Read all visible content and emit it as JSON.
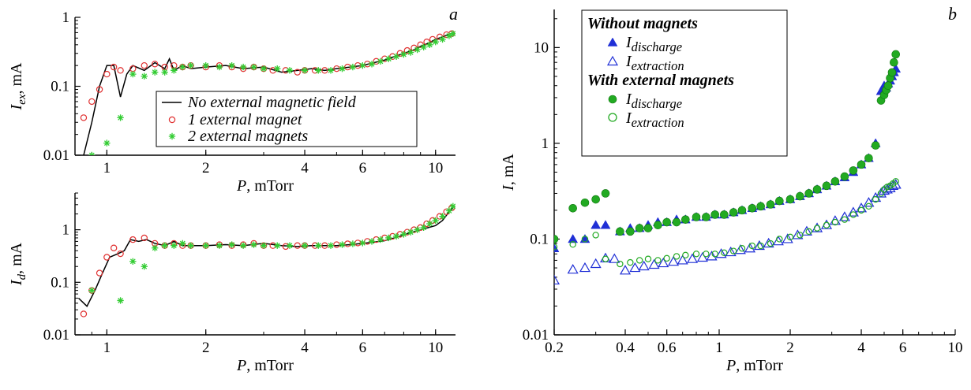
{
  "chart_data": [
    {
      "id": "panel-a-top",
      "type": "scatter",
      "panel_label": "a",
      "xlabel_var": "P",
      "xlabel_unit": ", mTorr",
      "ylabel_var": "I",
      "ylabel_sub": "ex",
      "ylabel_unit": ", mA",
      "x_scale": "log",
      "y_scale": "log",
      "xlim": [
        0.8,
        11.5
      ],
      "ylim": [
        0.01,
        1
      ],
      "x_ticks": [
        1,
        2,
        4,
        6,
        10
      ],
      "x_tick_labels": [
        "1",
        "2",
        "4",
        "6",
        "10"
      ],
      "y_ticks": [
        0.01,
        0.1,
        1
      ],
      "y_tick_labels": [
        "0.01",
        "0.1",
        "1"
      ],
      "legend_position": "middle-right",
      "series": [
        {
          "name": "No external magnetic field",
          "style": "line",
          "color": "#000000",
          "x": [
            0.85,
            0.9,
            0.95,
            1.0,
            1.05,
            1.1,
            1.15,
            1.2,
            1.3,
            1.4,
            1.5,
            1.55,
            1.6,
            1.7,
            1.8,
            2.0,
            2.3,
            2.6,
            3.0,
            3.4,
            3.8,
            4.2,
            4.6,
            5.0,
            5.5,
            6.0,
            6.5,
            7.0,
            7.5,
            8.0,
            8.5,
            9.0,
            9.5,
            10.0,
            10.5,
            11.0
          ],
          "y": [
            0.01,
            0.03,
            0.1,
            0.2,
            0.2,
            0.07,
            0.15,
            0.2,
            0.17,
            0.22,
            0.18,
            0.25,
            0.17,
            0.2,
            0.18,
            0.19,
            0.2,
            0.18,
            0.19,
            0.16,
            0.17,
            0.18,
            0.17,
            0.18,
            0.19,
            0.2,
            0.22,
            0.24,
            0.27,
            0.3,
            0.33,
            0.38,
            0.42,
            0.48,
            0.52,
            0.57
          ]
        },
        {
          "name": "1 external magnet",
          "style": "open-circle",
          "color": "#e03030",
          "x": [
            0.85,
            0.9,
            0.95,
            1.0,
            1.05,
            1.1,
            1.2,
            1.3,
            1.4,
            1.5,
            1.6,
            1.7,
            1.8,
            2.0,
            2.2,
            2.4,
            2.6,
            2.8,
            3.0,
            3.2,
            3.5,
            3.8,
            4.0,
            4.3,
            4.6,
            5.0,
            5.4,
            5.8,
            6.2,
            6.6,
            7.0,
            7.4,
            7.8,
            8.2,
            8.6,
            9.0,
            9.4,
            9.8,
            10.3,
            10.8,
            11.2
          ],
          "y": [
            0.035,
            0.06,
            0.09,
            0.15,
            0.19,
            0.17,
            0.18,
            0.2,
            0.21,
            0.19,
            0.2,
            0.19,
            0.2,
            0.19,
            0.2,
            0.19,
            0.18,
            0.19,
            0.18,
            0.17,
            0.17,
            0.16,
            0.17,
            0.17,
            0.17,
            0.18,
            0.19,
            0.2,
            0.21,
            0.23,
            0.25,
            0.27,
            0.3,
            0.33,
            0.36,
            0.4,
            0.44,
            0.48,
            0.52,
            0.56,
            0.58
          ]
        },
        {
          "name": "2 external magnets",
          "style": "asterisk",
          "color": "#33cc33",
          "x": [
            0.9,
            1.0,
            1.1,
            1.2,
            1.3,
            1.4,
            1.5,
            1.6,
            1.7,
            1.8,
            2.0,
            2.2,
            2.4,
            2.6,
            2.8,
            3.0,
            3.3,
            3.6,
            4.0,
            4.4,
            4.8,
            5.2,
            5.6,
            6.0,
            6.4,
            6.8,
            7.2,
            7.6,
            8.0,
            8.4,
            8.8,
            9.2,
            9.6,
            10.0,
            10.5,
            11.0,
            11.3
          ],
          "y": [
            0.01,
            0.015,
            0.035,
            0.15,
            0.14,
            0.16,
            0.16,
            0.17,
            0.19,
            0.2,
            0.2,
            0.19,
            0.2,
            0.19,
            0.19,
            0.18,
            0.18,
            0.17,
            0.17,
            0.17,
            0.17,
            0.18,
            0.19,
            0.2,
            0.21,
            0.23,
            0.25,
            0.27,
            0.29,
            0.31,
            0.34,
            0.37,
            0.4,
            0.44,
            0.48,
            0.54,
            0.58
          ]
        }
      ]
    },
    {
      "id": "panel-a-bottom",
      "type": "scatter",
      "xlabel_var": "P",
      "xlabel_unit": ", mTorr",
      "ylabel_var": "I",
      "ylabel_sub": "d",
      "ylabel_unit": ", mA",
      "x_scale": "log",
      "y_scale": "log",
      "xlim": [
        0.8,
        11.5
      ],
      "ylim": [
        0.01,
        5
      ],
      "x_ticks": [
        1,
        2,
        4,
        6,
        10
      ],
      "x_tick_labels": [
        "1",
        "2",
        "4",
        "6",
        "10"
      ],
      "y_ticks": [
        0.01,
        0.1,
        1
      ],
      "y_tick_labels": [
        "0.01",
        "0.1",
        "1"
      ],
      "series": [
        {
          "name": "No external magnetic field",
          "style": "line",
          "color": "#000000",
          "x": [
            0.82,
            0.87,
            0.92,
            0.97,
            1.02,
            1.08,
            1.13,
            1.18,
            1.25,
            1.32,
            1.4,
            1.5,
            1.6,
            1.7,
            1.85,
            2.0,
            2.3,
            2.6,
            3.0,
            3.4,
            3.8,
            4.2,
            4.6,
            5.0,
            5.5,
            6.0,
            6.5,
            7.0,
            7.5,
            8.0,
            8.5,
            9.0,
            9.5,
            10.0,
            10.5,
            11.0,
            11.4
          ],
          "y": [
            0.05,
            0.035,
            0.07,
            0.15,
            0.3,
            0.35,
            0.4,
            0.65,
            0.6,
            0.65,
            0.55,
            0.5,
            0.6,
            0.5,
            0.5,
            0.5,
            0.52,
            0.5,
            0.55,
            0.5,
            0.48,
            0.5,
            0.5,
            0.5,
            0.52,
            0.55,
            0.58,
            0.62,
            0.7,
            0.8,
            0.9,
            1.0,
            1.1,
            1.2,
            1.5,
            2.2,
            2.8
          ]
        },
        {
          "name": "1 external magnet",
          "style": "open-circle",
          "color": "#e03030",
          "x": [
            0.85,
            0.9,
            0.95,
            1.0,
            1.05,
            1.1,
            1.2,
            1.3,
            1.4,
            1.5,
            1.6,
            1.7,
            1.8,
            2.0,
            2.2,
            2.4,
            2.6,
            2.8,
            3.0,
            3.2,
            3.5,
            3.8,
            4.0,
            4.3,
            4.6,
            5.0,
            5.4,
            5.8,
            6.2,
            6.6,
            7.0,
            7.4,
            7.8,
            8.2,
            8.6,
            9.0,
            9.4,
            9.8,
            10.3,
            10.8,
            11.2
          ],
          "y": [
            0.025,
            0.07,
            0.15,
            0.3,
            0.45,
            0.35,
            0.65,
            0.7,
            0.55,
            0.5,
            0.55,
            0.5,
            0.5,
            0.5,
            0.52,
            0.5,
            0.52,
            0.55,
            0.5,
            0.5,
            0.48,
            0.5,
            0.5,
            0.5,
            0.5,
            0.52,
            0.54,
            0.56,
            0.6,
            0.65,
            0.7,
            0.75,
            0.82,
            0.9,
            1.0,
            1.1,
            1.3,
            1.5,
            1.8,
            2.2,
            2.6
          ]
        },
        {
          "name": "2 external magnets",
          "style": "asterisk",
          "color": "#33cc33",
          "x": [
            0.9,
            1.1,
            1.2,
            1.3,
            1.4,
            1.5,
            1.6,
            1.7,
            1.8,
            2.0,
            2.2,
            2.4,
            2.6,
            2.8,
            3.0,
            3.3,
            3.6,
            4.0,
            4.4,
            4.8,
            5.2,
            5.6,
            6.0,
            6.4,
            6.8,
            7.2,
            7.6,
            8.0,
            8.4,
            8.8,
            9.2,
            9.6,
            10.0,
            10.5,
            11.0,
            11.3
          ],
          "y": [
            0.07,
            0.045,
            0.25,
            0.2,
            0.45,
            0.5,
            0.5,
            0.55,
            0.5,
            0.5,
            0.5,
            0.52,
            0.5,
            0.52,
            0.5,
            0.5,
            0.5,
            0.5,
            0.5,
            0.5,
            0.52,
            0.54,
            0.56,
            0.6,
            0.65,
            0.7,
            0.75,
            0.82,
            0.9,
            1.0,
            1.1,
            1.3,
            1.5,
            1.8,
            2.3,
            2.8
          ]
        }
      ]
    },
    {
      "id": "panel-b",
      "type": "scatter",
      "panel_label": "b",
      "xlabel_var": "P",
      "xlabel_unit": ", mTorr",
      "ylabel_var": "I",
      "ylabel_unit": ", mA",
      "x_scale": "log",
      "y_scale": "log",
      "xlim": [
        0.2,
        10
      ],
      "ylim": [
        0.01,
        25
      ],
      "x_ticks": [
        0.2,
        0.4,
        0.6,
        1,
        2,
        4,
        6,
        10
      ],
      "x_tick_labels": [
        "0.2",
        "0.4",
        "0.6",
        "1",
        "2",
        "4",
        "6",
        "10"
      ],
      "y_ticks": [
        0.01,
        0.1,
        1,
        10
      ],
      "y_tick_labels": [
        "0.01",
        "0.1",
        "1",
        "10"
      ],
      "legend_position": "top-left",
      "legend_groups": [
        {
          "title": "Without magnets",
          "entries": [
            {
              "var": "I",
              "sub": "discharge",
              "style": "filled-triangle"
            },
            {
              "var": "I",
              "sub": "extraction",
              "style": "open-triangle"
            }
          ]
        },
        {
          "title": "With external magnets",
          "entries": [
            {
              "var": "I",
              "sub": "discharge",
              "style": "filled-circle"
            },
            {
              "var": "I",
              "sub": "extraction",
              "style": "open-circle"
            }
          ]
        }
      ],
      "series": [
        {
          "name": "Without magnets: I_discharge",
          "style": "filled-triangle",
          "color": "#1f2fd6",
          "x": [
            0.2,
            0.24,
            0.27,
            0.3,
            0.33,
            0.38,
            0.42,
            0.46,
            0.5,
            0.55,
            0.6,
            0.66,
            0.72,
            0.8,
            0.88,
            0.96,
            1.05,
            1.15,
            1.25,
            1.38,
            1.5,
            1.65,
            1.8,
            2.0,
            2.2,
            2.4,
            2.6,
            2.85,
            3.1,
            3.4,
            3.7,
            4.0,
            4.3,
            4.6,
            4.85,
            5.0,
            5.1,
            5.2,
            5.3,
            5.4,
            5.5,
            5.6
          ],
          "y": [
            0.08,
            0.1,
            0.1,
            0.14,
            0.14,
            0.12,
            0.13,
            0.13,
            0.14,
            0.15,
            0.15,
            0.16,
            0.16,
            0.17,
            0.17,
            0.18,
            0.18,
            0.19,
            0.2,
            0.21,
            0.22,
            0.23,
            0.25,
            0.26,
            0.28,
            0.3,
            0.33,
            0.36,
            0.4,
            0.44,
            0.5,
            0.6,
            0.7,
            1.0,
            3.5,
            4.0,
            3.8,
            4.2,
            4.5,
            5.0,
            5.5,
            6.0
          ]
        },
        {
          "name": "Without magnets: I_extraction",
          "style": "open-triangle",
          "color": "#1f2fd6",
          "x": [
            0.2,
            0.24,
            0.27,
            0.3,
            0.33,
            0.36,
            0.4,
            0.44,
            0.48,
            0.53,
            0.58,
            0.64,
            0.7,
            0.77,
            0.85,
            0.93,
            1.02,
            1.12,
            1.23,
            1.35,
            1.48,
            1.62,
            1.78,
            1.95,
            2.15,
            2.35,
            2.6,
            2.85,
            3.1,
            3.4,
            3.7,
            4.0,
            4.3,
            4.6,
            4.85,
            5.0,
            5.15,
            5.3,
            5.45,
            5.6
          ],
          "y": [
            0.037,
            0.048,
            0.05,
            0.055,
            0.063,
            0.062,
            0.047,
            0.05,
            0.052,
            0.054,
            0.056,
            0.058,
            0.06,
            0.062,
            0.064,
            0.066,
            0.07,
            0.073,
            0.077,
            0.08,
            0.085,
            0.09,
            0.095,
            0.1,
            0.11,
            0.12,
            0.13,
            0.14,
            0.155,
            0.17,
            0.19,
            0.21,
            0.24,
            0.27,
            0.3,
            0.32,
            0.33,
            0.34,
            0.36,
            0.37
          ]
        },
        {
          "name": "With external magnets: I_discharge",
          "style": "filled-circle",
          "color": "#22aa22",
          "x": [
            0.2,
            0.24,
            0.27,
            0.3,
            0.33,
            0.38,
            0.42,
            0.46,
            0.5,
            0.55,
            0.6,
            0.66,
            0.72,
            0.8,
            0.88,
            0.96,
            1.05,
            1.15,
            1.25,
            1.38,
            1.5,
            1.65,
            1.8,
            2.0,
            2.2,
            2.4,
            2.6,
            2.85,
            3.1,
            3.4,
            3.7,
            4.0,
            4.3,
            4.6,
            4.85,
            5.0,
            5.1,
            5.2,
            5.3,
            5.4,
            5.5,
            5.6
          ],
          "y": [
            0.1,
            0.21,
            0.24,
            0.26,
            0.3,
            0.12,
            0.12,
            0.13,
            0.13,
            0.14,
            0.15,
            0.15,
            0.16,
            0.17,
            0.17,
            0.18,
            0.18,
            0.19,
            0.2,
            0.21,
            0.22,
            0.23,
            0.25,
            0.26,
            0.28,
            0.3,
            0.33,
            0.36,
            0.4,
            0.45,
            0.52,
            0.6,
            0.7,
            0.95,
            2.8,
            3.2,
            3.6,
            4.0,
            4.8,
            5.5,
            7.0,
            8.5
          ]
        },
        {
          "name": "With external magnets: I_extraction",
          "style": "open-circle",
          "color": "#22aa22",
          "x": [
            0.2,
            0.24,
            0.27,
            0.3,
            0.33,
            0.38,
            0.42,
            0.46,
            0.5,
            0.55,
            0.6,
            0.66,
            0.72,
            0.8,
            0.88,
            0.96,
            1.05,
            1.15,
            1.25,
            1.38,
            1.5,
            1.65,
            1.8,
            2.0,
            2.2,
            2.4,
            2.6,
            2.85,
            3.1,
            3.4,
            3.7,
            4.0,
            4.3,
            4.6,
            4.85,
            5.0,
            5.15,
            5.3,
            5.45,
            5.6
          ],
          "y": [
            0.083,
            0.088,
            0.1,
            0.11,
            0.062,
            0.055,
            0.057,
            0.06,
            0.062,
            0.06,
            0.063,
            0.066,
            0.068,
            0.07,
            0.07,
            0.07,
            0.072,
            0.075,
            0.08,
            0.085,
            0.085,
            0.09,
            0.1,
            0.105,
            0.11,
            0.12,
            0.13,
            0.14,
            0.15,
            0.16,
            0.18,
            0.2,
            0.22,
            0.26,
            0.3,
            0.33,
            0.35,
            0.36,
            0.38,
            0.4
          ]
        }
      ]
    }
  ]
}
